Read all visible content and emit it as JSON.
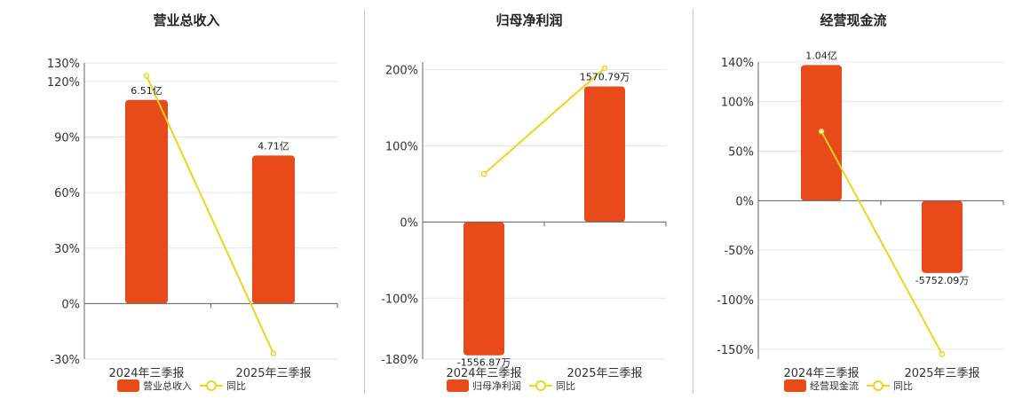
{
  "colors": {
    "bar": "#e84a1a",
    "line": "#f2d21b",
    "axis": "#666666",
    "grid": "#e4e4ec"
  },
  "chart_data": [
    {
      "type": "bar",
      "title": "营业总收入",
      "categories": [
        "2024年三季报",
        "2025年三季报"
      ],
      "series": [
        {
          "name": "营业总收入",
          "type": "bar",
          "values": [
            110,
            80
          ],
          "labels": [
            "6.51亿",
            "4.71亿"
          ]
        },
        {
          "name": "同比",
          "type": "line",
          "values": [
            123,
            -27
          ]
        }
      ],
      "ylim": [
        -30,
        130
      ],
      "yticks": [
        -30,
        0,
        30,
        60,
        90,
        120,
        130
      ],
      "ytick_labels": [
        "-30%",
        "0%",
        "30%",
        "60%",
        "90%",
        "120%",
        "130%"
      ]
    },
    {
      "type": "bar",
      "title": "归母净利润",
      "categories": [
        "2024年三季报",
        "2025年三季报"
      ],
      "series": [
        {
          "name": "归母净利润",
          "type": "bar",
          "values": [
            -175,
            178
          ],
          "labels": [
            "-1556.87万",
            "1570.79万"
          ]
        },
        {
          "name": "同比",
          "type": "line",
          "values": [
            63,
            202
          ]
        }
      ],
      "ylim": [
        -180,
        210
      ],
      "yticks": [
        -180,
        -100,
        0,
        100,
        200
      ],
      "ytick_labels": [
        "-180%",
        "-100%",
        "0%",
        "100%",
        "200%"
      ]
    },
    {
      "type": "bar",
      "title": "经营现金流",
      "categories": [
        "2024年三季报",
        "2025年三季报"
      ],
      "series": [
        {
          "name": "经营现金流",
          "type": "bar",
          "values": [
            137,
            -73
          ],
          "labels": [
            "1.04亿",
            "-5752.09万"
          ]
        },
        {
          "name": "同比",
          "type": "line",
          "values": [
            70,
            -155
          ]
        }
      ],
      "ylim": [
        -160,
        140
      ],
      "yticks": [
        -150,
        -100,
        -50,
        0,
        50,
        100,
        140
      ],
      "ytick_labels": [
        "-150%",
        "-100%",
        "-50%",
        "0%",
        "50%",
        "100%",
        "140%"
      ]
    }
  ],
  "legend": [
    {
      "bar": "营业总收入",
      "line": "同比"
    },
    {
      "bar": "归母净利润",
      "line": "同比"
    },
    {
      "bar": "经营现金流",
      "line": "同比"
    }
  ]
}
